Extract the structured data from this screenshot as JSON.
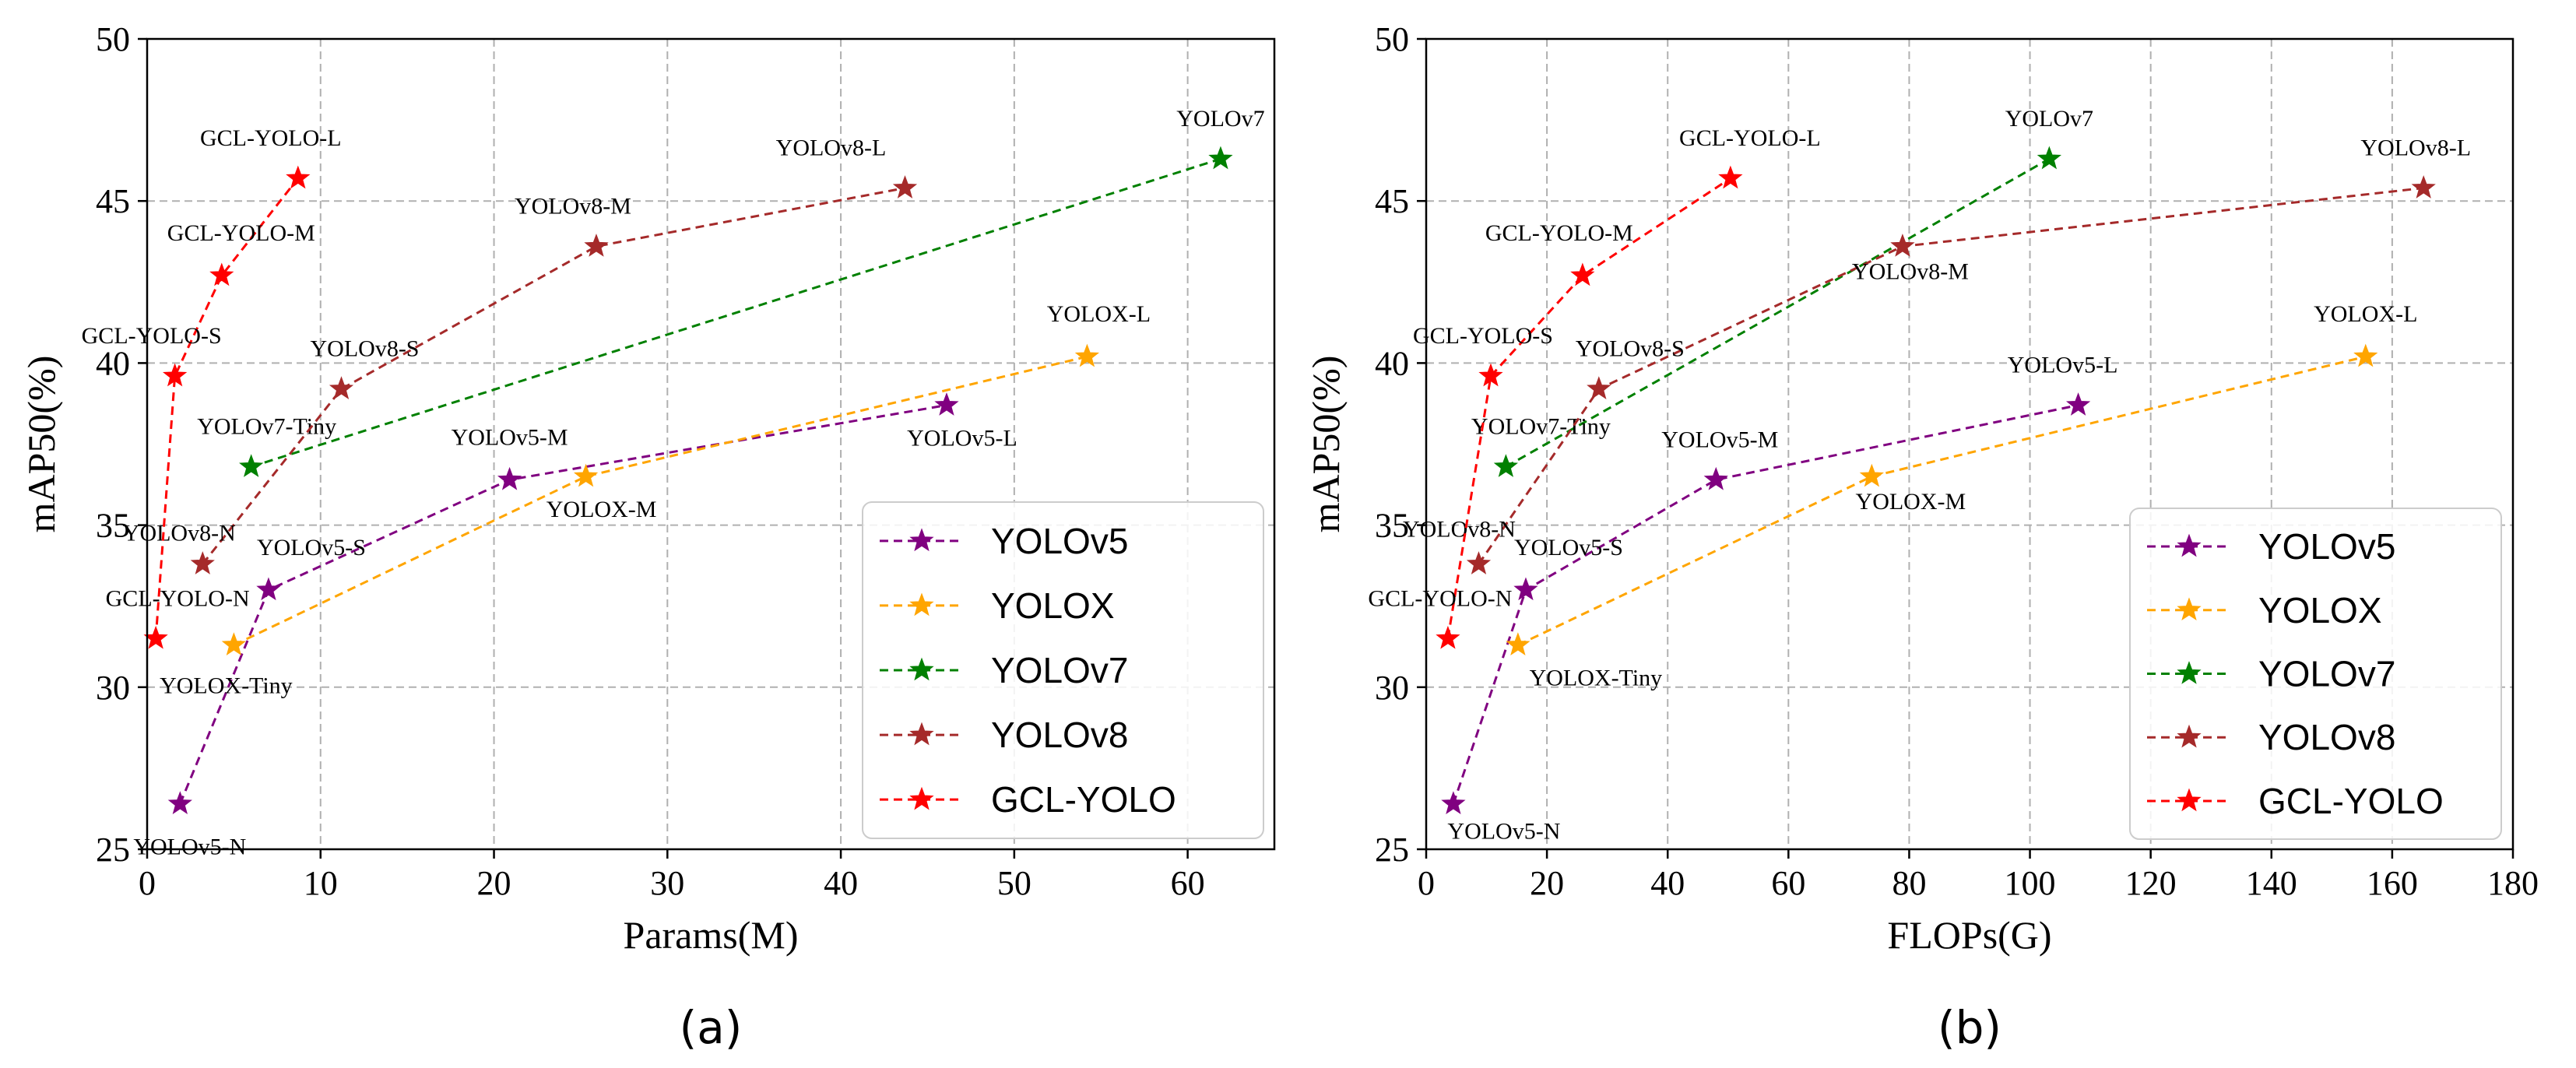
{
  "chart_data": [
    {
      "type": "line",
      "panel_label": "(a)",
      "xlabel": "Params(M)",
      "ylabel": "mAP50(%)",
      "xlim": [
        0,
        65
      ],
      "ylim": [
        25,
        50
      ],
      "xticks": [
        0,
        10,
        20,
        30,
        40,
        50,
        60
      ],
      "yticks": [
        25,
        30,
        35,
        40,
        45,
        50
      ],
      "grid": true,
      "legend_position": "bottom-right",
      "series": [
        {
          "name": "YOLOv5",
          "color": "#800080",
          "points": [
            {
              "label": "YOLOv5-N",
              "x": 1.9,
              "y": 26.4
            },
            {
              "label": "YOLOv5-S",
              "x": 7.0,
              "y": 33.0
            },
            {
              "label": "YOLOv5-M",
              "x": 20.9,
              "y": 36.4
            },
            {
              "label": "YOLOv5-L",
              "x": 46.1,
              "y": 38.7
            }
          ]
        },
        {
          "name": "YOLOX",
          "color": "#ffa500",
          "points": [
            {
              "label": "YOLOX-Tiny",
              "x": 5.0,
              "y": 31.3
            },
            {
              "label": "YOLOX-M",
              "x": 25.3,
              "y": 36.5
            },
            {
              "label": "YOLOX-L",
              "x": 54.2,
              "y": 40.2
            }
          ]
        },
        {
          "name": "YOLOv7",
          "color": "#008000",
          "points": [
            {
              "label": "YOLOv7-Tiny",
              "x": 6.0,
              "y": 36.8
            },
            {
              "label": "YOLOv7",
              "x": 61.9,
              "y": 46.3
            }
          ]
        },
        {
          "name": "YOLOv8",
          "color": "#a52a2a",
          "points": [
            {
              "label": "YOLOv8-N",
              "x": 3.2,
              "y": 33.8
            },
            {
              "label": "YOLOv8-S",
              "x": 11.2,
              "y": 39.2
            },
            {
              "label": "YOLOv8-M",
              "x": 25.9,
              "y": 43.6
            },
            {
              "label": "YOLOv8-L",
              "x": 43.7,
              "y": 45.4
            }
          ]
        },
        {
          "name": "GCL-YOLO",
          "color": "#ff0000",
          "points": [
            {
              "label": "GCL-YOLO-N",
              "x": 0.5,
              "y": 31.5
            },
            {
              "label": "GCL-YOLO-S",
              "x": 1.6,
              "y": 39.6
            },
            {
              "label": "GCL-YOLO-M",
              "x": 4.3,
              "y": 42.7
            },
            {
              "label": "GCL-YOLO-L",
              "x": 8.7,
              "y": 45.7
            }
          ]
        }
      ]
    },
    {
      "type": "line",
      "panel_label": "(b)",
      "xlabel": "FLOPs(G)",
      "ylabel": "mAP50(%)",
      "xlim": [
        0,
        180
      ],
      "ylim": [
        25,
        50
      ],
      "xticks": [
        0,
        20,
        40,
        60,
        80,
        100,
        120,
        140,
        160,
        180
      ],
      "yticks": [
        25,
        30,
        35,
        40,
        45,
        50
      ],
      "grid": true,
      "legend_position": "bottom-right",
      "series": [
        {
          "name": "YOLOv5",
          "color": "#800080",
          "points": [
            {
              "label": "YOLOv5-N",
              "x": 4.5,
              "y": 26.4
            },
            {
              "label": "YOLOv5-S",
              "x": 16.5,
              "y": 33.0
            },
            {
              "label": "YOLOv5-M",
              "x": 48.0,
              "y": 36.4
            },
            {
              "label": "YOLOv5-L",
              "x": 108.0,
              "y": 38.7
            }
          ]
        },
        {
          "name": "YOLOX",
          "color": "#ffa500",
          "points": [
            {
              "label": "YOLOX-Tiny",
              "x": 15.2,
              "y": 31.3
            },
            {
              "label": "YOLOX-M",
              "x": 73.8,
              "y": 36.5
            },
            {
              "label": "YOLOX-L",
              "x": 155.6,
              "y": 40.2
            }
          ]
        },
        {
          "name": "YOLOv7",
          "color": "#008000",
          "points": [
            {
              "label": "YOLOv7-Tiny",
              "x": 13.2,
              "y": 36.8
            },
            {
              "label": "YOLOv7",
              "x": 103.2,
              "y": 46.3
            }
          ]
        },
        {
          "name": "YOLOv8",
          "color": "#a52a2a",
          "points": [
            {
              "label": "YOLOv8-N",
              "x": 8.7,
              "y": 33.8
            },
            {
              "label": "YOLOv8-S",
              "x": 28.6,
              "y": 39.2
            },
            {
              "label": "YOLOv8-M",
              "x": 78.9,
              "y": 43.6
            },
            {
              "label": "YOLOv8-L",
              "x": 165.2,
              "y": 45.4
            }
          ]
        },
        {
          "name": "GCL-YOLO",
          "color": "#ff0000",
          "points": [
            {
              "label": "GCL-YOLO-N",
              "x": 3.6,
              "y": 31.5
            },
            {
              "label": "GCL-YOLO-S",
              "x": 10.7,
              "y": 39.6
            },
            {
              "label": "GCL-YOLO-M",
              "x": 25.9,
              "y": 42.7
            },
            {
              "label": "GCL-YOLO-L",
              "x": 50.4,
              "y": 45.7
            }
          ]
        }
      ]
    }
  ]
}
